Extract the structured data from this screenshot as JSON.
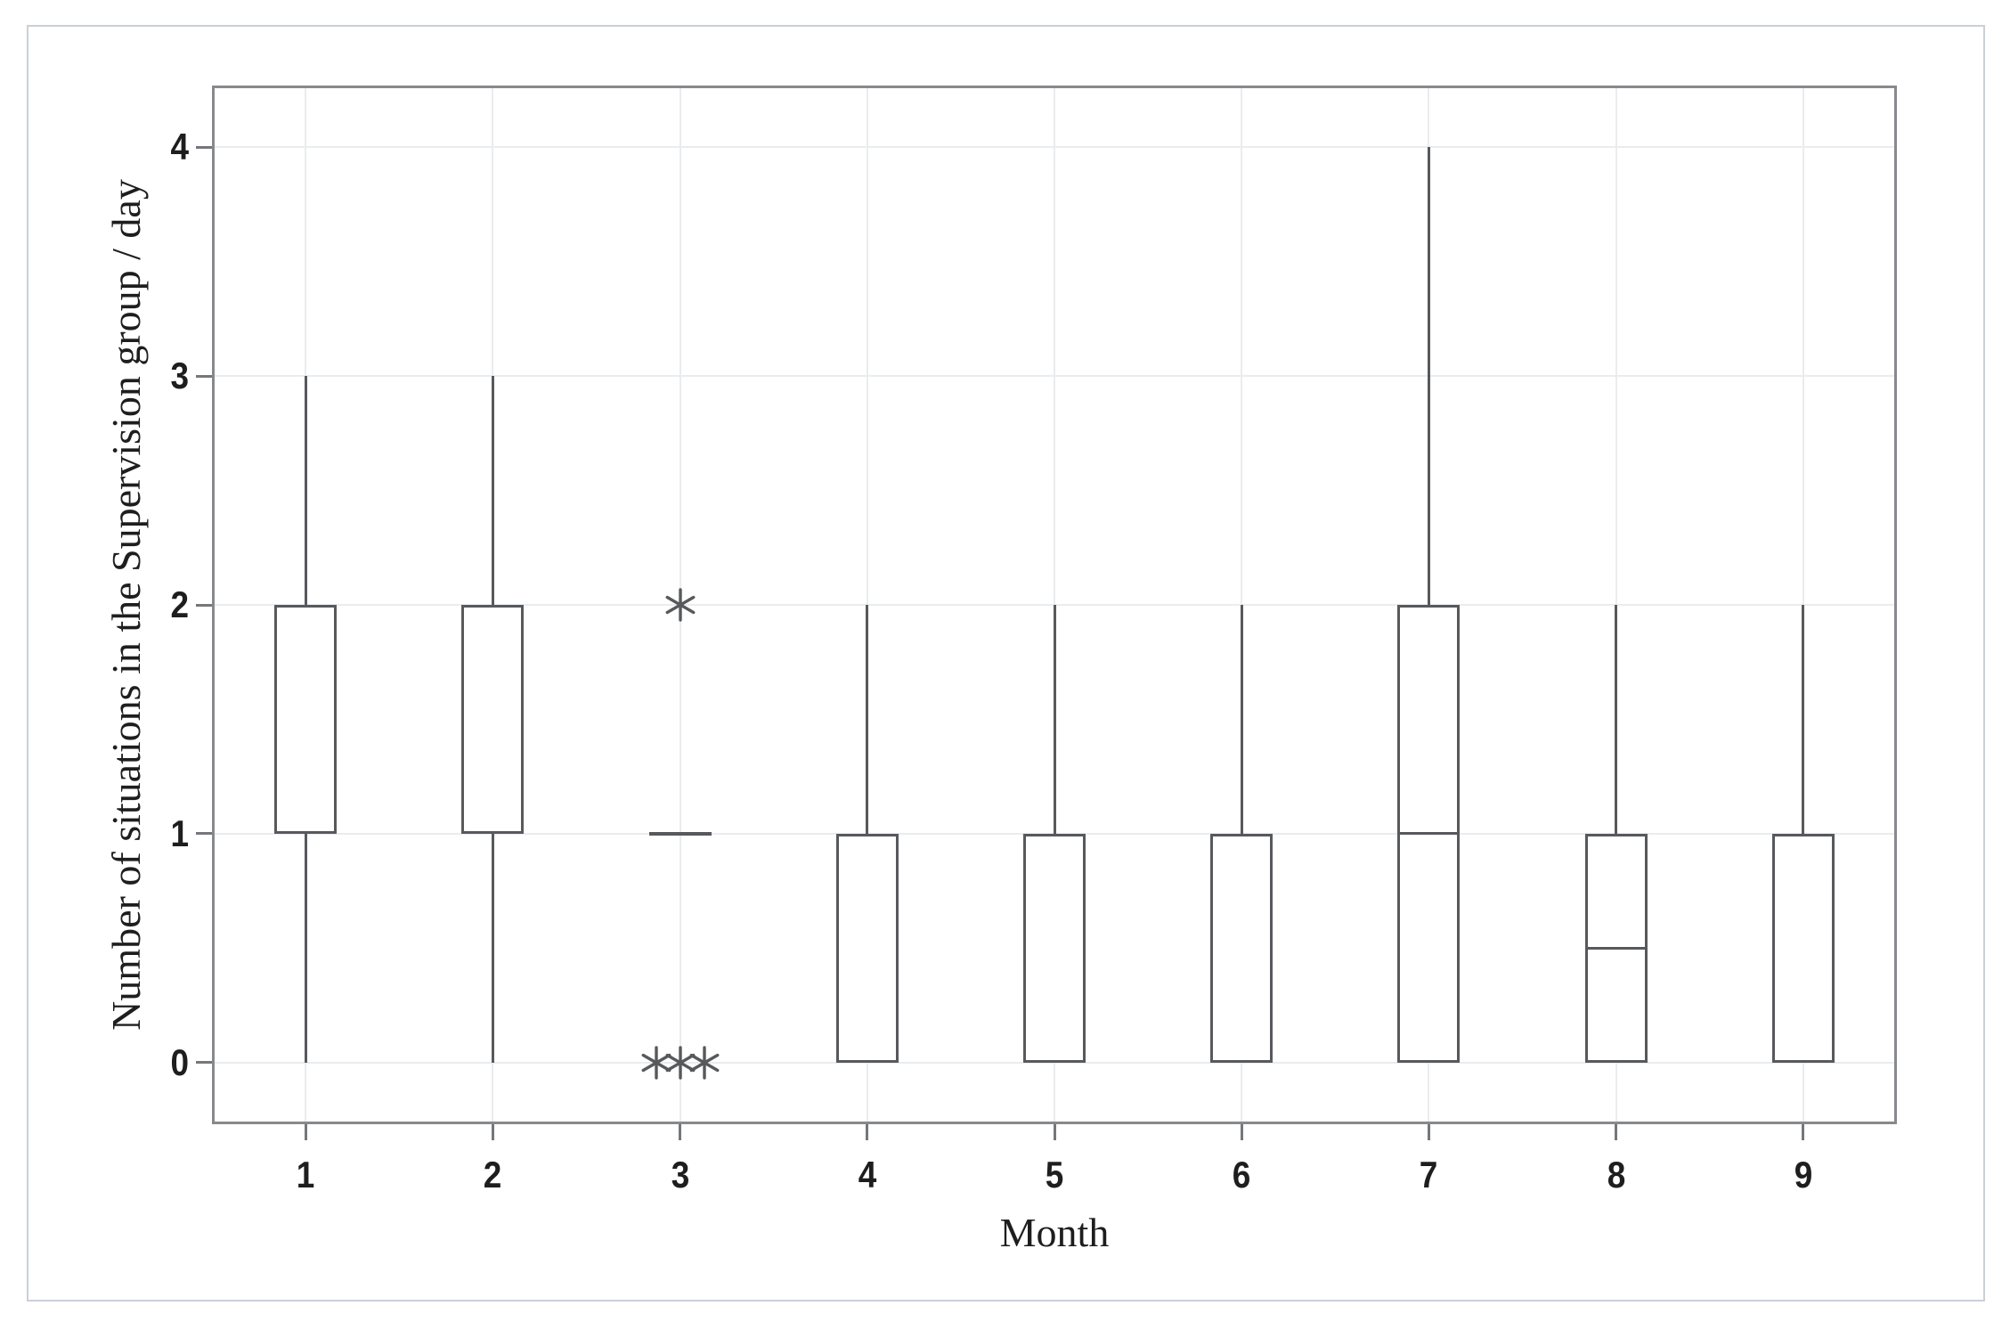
{
  "figure": {
    "background_color": "#ffffff",
    "border_color": "#cad0d8",
    "frame_color": "#87898c",
    "gridline_color": "#eaecee",
    "box_line_color": "#57595c",
    "text_color": "#1e1e1e",
    "outlier_marker": "asterisk-6-spoke"
  },
  "chart_data": {
    "type": "boxplot",
    "title": "",
    "xlabel": "Month",
    "ylabel": "Number of situations in the Supervision group / day",
    "x_categories": [
      "1",
      "2",
      "3",
      "4",
      "5",
      "6",
      "7",
      "8",
      "9"
    ],
    "y_ticks": [
      0,
      1,
      2,
      3,
      4
    ],
    "ylim": [
      -0.27,
      4.27
    ],
    "grid": "light gray horizontal and vertical gridlines at every tick",
    "legend": "none",
    "boxes": [
      {
        "month": "1",
        "whisker_low": 0,
        "q1": 1,
        "median": null,
        "q3": 2,
        "whisker_high": 3,
        "outliers": []
      },
      {
        "month": "2",
        "whisker_low": 0,
        "q1": 1,
        "median": null,
        "q3": 2,
        "whisker_high": 3,
        "outliers": []
      },
      {
        "month": "3",
        "whisker_low": 1,
        "q1": 1,
        "median": 1,
        "q3": 1,
        "whisker_high": 1,
        "outliers": [
          2,
          0,
          0,
          0
        ]
      },
      {
        "month": "4",
        "whisker_low": 0,
        "q1": 0,
        "median": null,
        "q3": 1,
        "whisker_high": 2,
        "outliers": []
      },
      {
        "month": "5",
        "whisker_low": 0,
        "q1": 0,
        "median": null,
        "q3": 1,
        "whisker_high": 2,
        "outliers": []
      },
      {
        "month": "6",
        "whisker_low": 0,
        "q1": 0,
        "median": null,
        "q3": 1,
        "whisker_high": 2,
        "outliers": []
      },
      {
        "month": "7",
        "whisker_low": 0,
        "q1": 0,
        "median": 1,
        "q3": 2,
        "whisker_high": 4,
        "outliers": []
      },
      {
        "month": "8",
        "whisker_low": 0,
        "q1": 0,
        "median": 0.5,
        "q3": 1,
        "whisker_high": 2,
        "outliers": []
      },
      {
        "month": "9",
        "whisker_low": 0,
        "q1": 0,
        "median": null,
        "q3": 1,
        "whisker_high": 2,
        "outliers": []
      }
    ]
  }
}
